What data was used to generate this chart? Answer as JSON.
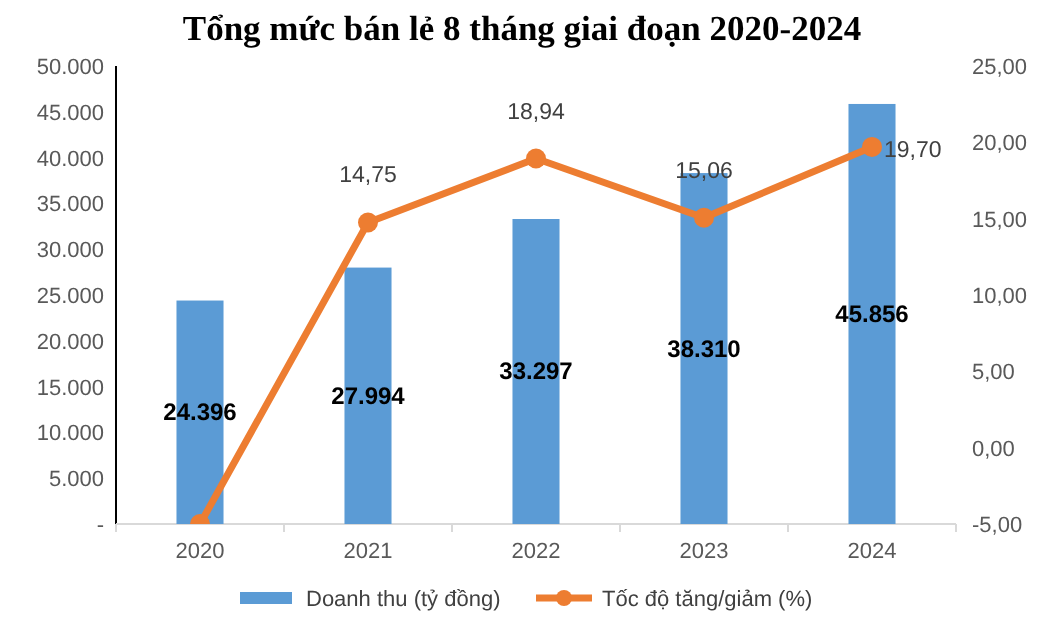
{
  "chart_data": {
    "type": "bar",
    "title": "Tổng mức bán lẻ 8 tháng giai đoạn 2020-2024",
    "categories": [
      "2020",
      "2021",
      "2022",
      "2023",
      "2024"
    ],
    "series": [
      {
        "name": "Doanh thu (tỷ đồng)",
        "color": "#5b9bd5",
        "values": [
          24396,
          27994,
          33297,
          38310,
          45856
        ],
        "value_labels": [
          "24.396",
          "27.994",
          "33.297",
          "38.310",
          "45.856"
        ]
      },
      {
        "name": "Tốc độ tăng/giảm (%)",
        "type": "line",
        "axis": "y2",
        "color": "#ed7d31",
        "marker": "circle",
        "values": [
          -5,
          14.75,
          18.94,
          15.06,
          19.7
        ],
        "value_labels": [
          null,
          "14,75",
          "18,94",
          "15,06",
          "19,70"
        ]
      }
    ],
    "ylim": [
      0,
      50000
    ],
    "yticks": [
      {
        "value": 0,
        "label": "-"
      },
      {
        "value": 5000,
        "label": "5.000"
      },
      {
        "value": 10000,
        "label": "10.000"
      },
      {
        "value": 15000,
        "label": "15.000"
      },
      {
        "value": 20000,
        "label": "20.000"
      },
      {
        "value": 25000,
        "label": "25.000"
      },
      {
        "value": 30000,
        "label": "30.000"
      },
      {
        "value": 35000,
        "label": "35.000"
      },
      {
        "value": 40000,
        "label": "40.000"
      },
      {
        "value": 45000,
        "label": "45.000"
      },
      {
        "value": 50000,
        "label": "50.000"
      }
    ],
    "y2lim": [
      -5,
      25
    ],
    "y2ticks": [
      {
        "value": -5,
        "label": "-5,00"
      },
      {
        "value": 0,
        "label": "0,00"
      },
      {
        "value": 5,
        "label": "5,00"
      },
      {
        "value": 10,
        "label": "10,00"
      },
      {
        "value": 15,
        "label": "15,00"
      },
      {
        "value": 20,
        "label": "20,00"
      },
      {
        "value": 25,
        "label": "25,00"
      }
    ],
    "legend": "bottom",
    "grid": false
  }
}
